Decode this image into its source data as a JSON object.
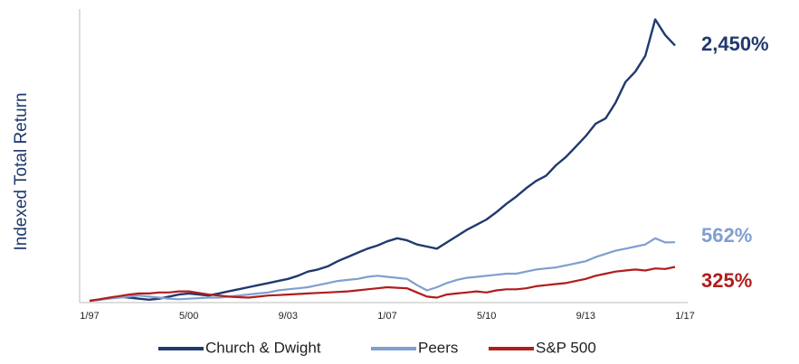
{
  "chart_data": {
    "type": "line",
    "y_axis_label": "Indexed Total Return",
    "categories": [
      "1/97",
      null,
      null,
      null,
      null,
      null,
      null,
      null,
      null,
      null,
      "5/00",
      null,
      null,
      null,
      null,
      null,
      null,
      null,
      null,
      null,
      "9/03",
      null,
      null,
      null,
      null,
      null,
      null,
      null,
      null,
      null,
      "1/07",
      null,
      null,
      null,
      null,
      null,
      null,
      null,
      null,
      null,
      "5/10",
      null,
      null,
      null,
      null,
      null,
      null,
      null,
      null,
      null,
      "9/13",
      null,
      null,
      null,
      null,
      null,
      null,
      null,
      null,
      null,
      "1/17"
    ],
    "ylim": [
      0,
      2800
    ],
    "series": [
      {
        "name": "Church & Dwight",
        "color": "#1f3a6e",
        "end_label": "2,450%",
        "values": [
          0,
          10,
          25,
          40,
          30,
          20,
          10,
          20,
          40,
          60,
          70,
          60,
          50,
          70,
          90,
          110,
          130,
          150,
          170,
          190,
          210,
          240,
          280,
          300,
          330,
          380,
          420,
          460,
          500,
          530,
          570,
          600,
          580,
          540,
          520,
          500,
          560,
          620,
          680,
          730,
          780,
          850,
          930,
          1000,
          1080,
          1150,
          1200,
          1300,
          1380,
          1480,
          1580,
          1700,
          1750,
          1900,
          2100,
          2200,
          2350,
          2700,
          2550,
          2450,
          null
        ]
      },
      {
        "name": "Peers",
        "color": "#7f9fcf",
        "end_label": "562%",
        "values": [
          0,
          10,
          20,
          30,
          40,
          50,
          40,
          30,
          20,
          15,
          20,
          25,
          30,
          30,
          40,
          50,
          60,
          70,
          80,
          100,
          110,
          120,
          130,
          150,
          170,
          190,
          200,
          210,
          230,
          240,
          230,
          220,
          210,
          150,
          100,
          130,
          170,
          200,
          220,
          230,
          240,
          250,
          260,
          260,
          280,
          300,
          310,
          320,
          340,
          360,
          380,
          420,
          450,
          480,
          500,
          520,
          540,
          600,
          560,
          562,
          null
        ]
      },
      {
        "name": "S&P 500",
        "color": "#b01c1c",
        "end_label": "325%",
        "values": [
          0,
          15,
          30,
          45,
          60,
          70,
          70,
          80,
          80,
          90,
          90,
          75,
          60,
          50,
          40,
          35,
          30,
          40,
          50,
          55,
          60,
          65,
          70,
          75,
          80,
          85,
          90,
          100,
          110,
          120,
          130,
          125,
          120,
          80,
          40,
          30,
          60,
          70,
          80,
          90,
          80,
          100,
          110,
          110,
          120,
          140,
          150,
          160,
          170,
          190,
          210,
          240,
          260,
          280,
          290,
          300,
          290,
          310,
          305,
          325,
          null
        ]
      }
    ]
  }
}
